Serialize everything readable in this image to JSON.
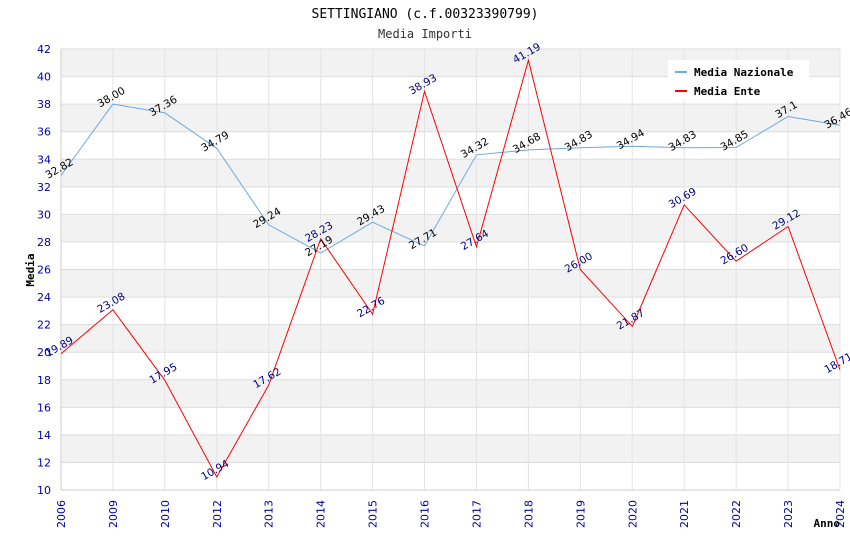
{
  "chart_data": {
    "type": "line",
    "title": "SETTINGIANO (c.f.00323390799)",
    "subtitle": "Media Importi",
    "xlabel": "Anno",
    "ylabel": "Media",
    "ylim": [
      10,
      42
    ],
    "y_ticks": [
      "10",
      "12",
      "14",
      "16",
      "18",
      "20",
      "22",
      "24",
      "26",
      "28",
      "30",
      "32",
      "34",
      "36",
      "38",
      "40",
      "42"
    ],
    "categories": [
      "2006",
      "2009",
      "2010",
      "2012",
      "2013",
      "2014",
      "2015",
      "2016",
      "2017",
      "2018",
      "2019",
      "2020",
      "2021",
      "2022",
      "2023",
      "2024"
    ],
    "series": [
      {
        "name": "Media Nazionale",
        "color": "#6fa8dc",
        "values": [
          32.82,
          38.0,
          37.36,
          34.79,
          29.24,
          27.19,
          29.43,
          27.71,
          34.32,
          34.68,
          34.83,
          34.94,
          34.83,
          34.85,
          37.1,
          36.46
        ],
        "labels": [
          "32.82",
          "38.00",
          "37.36",
          "34.79",
          "29.24",
          "27.19",
          "29.43",
          "27.71",
          "34.32",
          "34.68",
          "34.83",
          "34.94",
          "34.83",
          "34.85",
          "37.1",
          "36.46"
        ]
      },
      {
        "name": "Media Ente",
        "color": "#ff0000",
        "values": [
          19.89,
          23.08,
          17.95,
          10.94,
          17.62,
          28.23,
          22.76,
          38.93,
          27.64,
          41.19,
          26.0,
          21.87,
          30.69,
          26.6,
          29.12,
          18.71
        ],
        "labels": [
          "19.89",
          "23.08",
          "17.95",
          "10.94",
          "17.62",
          "28.23",
          "22.76",
          "38.93",
          "27.64",
          "41.19",
          "26.00",
          "21.87",
          "30.69",
          "26.60",
          "29.12",
          "18.71"
        ]
      }
    ],
    "legend_position": "top-right",
    "grid": true
  }
}
